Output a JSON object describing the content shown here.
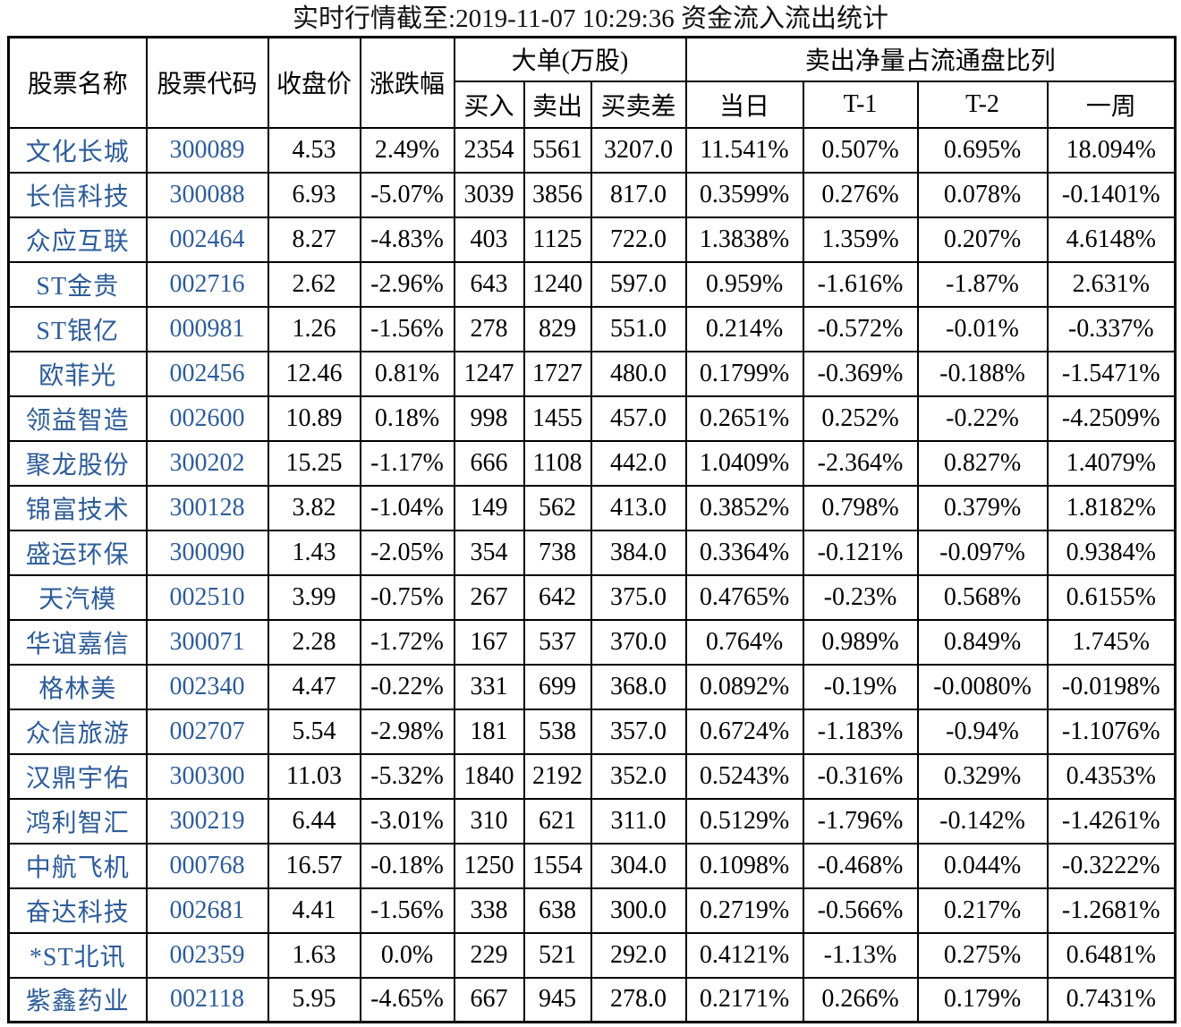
{
  "page": {
    "title": "实时行情截至:2019-11-07 10:29:36 资金流入流出统计"
  },
  "colors": {
    "stock_link_blue": "#2d5c99",
    "body_text": "#000000",
    "border": "#000000"
  },
  "table": {
    "headers": {
      "stock_name": "股票名称",
      "stock_code": "股票代码",
      "close_price": "收盘价",
      "change_pct": "涨跌幅",
      "big_orders_group": "大单(万股)",
      "big_orders_sub": [
        "买入",
        "卖出",
        "买卖差"
      ],
      "net_sell_group": "卖出净量占流通盘比列",
      "net_sell_sub": [
        "当日",
        "T-1",
        "T-2",
        "一周"
      ]
    },
    "rows": [
      [
        "文化长城",
        "300089",
        "4.53",
        "2.49%",
        "2354",
        "5561",
        "3207.0",
        "11.541%",
        "0.507%",
        "0.695%",
        "18.094%"
      ],
      [
        "长信科技",
        "300088",
        "6.93",
        "-5.07%",
        "3039",
        "3856",
        "817.0",
        "0.3599%",
        "0.276%",
        "0.078%",
        "-0.1401%"
      ],
      [
        "众应互联",
        "002464",
        "8.27",
        "-4.83%",
        "403",
        "1125",
        "722.0",
        "1.3838%",
        "1.359%",
        "0.207%",
        "4.6148%"
      ],
      [
        "ST金贵",
        "002716",
        "2.62",
        "-2.96%",
        "643",
        "1240",
        "597.0",
        "0.959%",
        "-1.616%",
        "-1.87%",
        "2.631%"
      ],
      [
        "ST银亿",
        "000981",
        "1.26",
        "-1.56%",
        "278",
        "829",
        "551.0",
        "0.214%",
        "-0.572%",
        "-0.01%",
        "-0.337%"
      ],
      [
        "欧菲光",
        "002456",
        "12.46",
        "0.81%",
        "1247",
        "1727",
        "480.0",
        "0.1799%",
        "-0.369%",
        "-0.188%",
        "-1.5471%"
      ],
      [
        "领益智造",
        "002600",
        "10.89",
        "0.18%",
        "998",
        "1455",
        "457.0",
        "0.2651%",
        "0.252%",
        "-0.22%",
        "-4.2509%"
      ],
      [
        "聚龙股份",
        "300202",
        "15.25",
        "-1.17%",
        "666",
        "1108",
        "442.0",
        "1.0409%",
        "-2.364%",
        "0.827%",
        "1.4079%"
      ],
      [
        "锦富技术",
        "300128",
        "3.82",
        "-1.04%",
        "149",
        "562",
        "413.0",
        "0.3852%",
        "0.798%",
        "0.379%",
        "1.8182%"
      ],
      [
        "盛运环保",
        "300090",
        "1.43",
        "-2.05%",
        "354",
        "738",
        "384.0",
        "0.3364%",
        "-0.121%",
        "-0.097%",
        "0.9384%"
      ],
      [
        "天汽模",
        "002510",
        "3.99",
        "-0.75%",
        "267",
        "642",
        "375.0",
        "0.4765%",
        "-0.23%",
        "0.568%",
        "0.6155%"
      ],
      [
        "华谊嘉信",
        "300071",
        "2.28",
        "-1.72%",
        "167",
        "537",
        "370.0",
        "0.764%",
        "0.989%",
        "0.849%",
        "1.745%"
      ],
      [
        "格林美",
        "002340",
        "4.47",
        "-0.22%",
        "331",
        "699",
        "368.0",
        "0.0892%",
        "-0.19%",
        "-0.0080%",
        "-0.0198%"
      ],
      [
        "众信旅游",
        "002707",
        "5.54",
        "-2.98%",
        "181",
        "538",
        "357.0",
        "0.6724%",
        "-1.183%",
        "-0.94%",
        "-1.1076%"
      ],
      [
        "汉鼎宇佑",
        "300300",
        "11.03",
        "-5.32%",
        "1840",
        "2192",
        "352.0",
        "0.5243%",
        "-0.316%",
        "0.329%",
        "0.4353%"
      ],
      [
        "鸿利智汇",
        "300219",
        "6.44",
        "-3.01%",
        "310",
        "621",
        "311.0",
        "0.5129%",
        "-1.796%",
        "-0.142%",
        "-1.4261%"
      ],
      [
        "中航飞机",
        "000768",
        "16.57",
        "-0.18%",
        "1250",
        "1554",
        "304.0",
        "0.1098%",
        "-0.468%",
        "0.044%",
        "-0.3222%"
      ],
      [
        "奋达科技",
        "002681",
        "4.41",
        "-1.56%",
        "338",
        "638",
        "300.0",
        "0.2719%",
        "-0.566%",
        "0.217%",
        "-1.2681%"
      ],
      [
        "*ST北讯",
        "002359",
        "1.63",
        "0.0%",
        "229",
        "521",
        "292.0",
        "0.4121%",
        "-1.13%",
        "0.275%",
        "0.6481%"
      ],
      [
        "紫鑫药业",
        "002118",
        "5.95",
        "-4.65%",
        "667",
        "945",
        "278.0",
        "0.2171%",
        "0.266%",
        "0.179%",
        "0.7431%"
      ]
    ]
  }
}
